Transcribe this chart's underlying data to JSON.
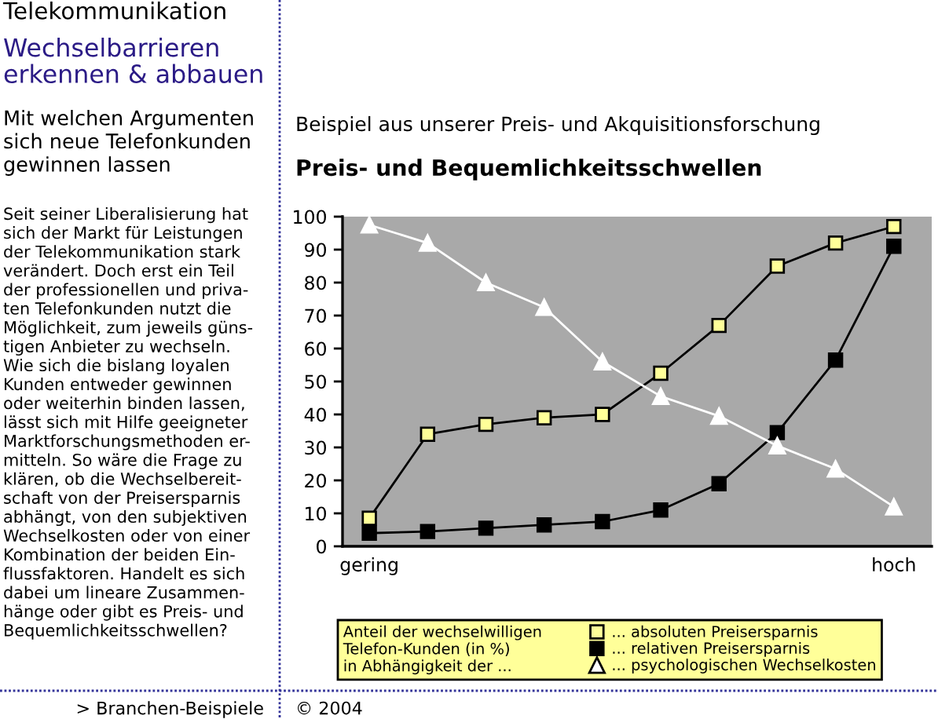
{
  "chart_data": {
    "type": "line",
    "title": "Preis- und Bequemlichkeitsschwellen",
    "subtitle": "Beispiel aus unserer Preis- und Akquisitionsforschung",
    "categories": [
      "gering",
      null,
      null,
      null,
      null,
      null,
      null,
      null,
      null,
      "hoch"
    ],
    "ylim": [
      0,
      100
    ],
    "yticks": [
      0,
      10,
      20,
      30,
      40,
      50,
      60,
      70,
      80,
      90,
      100
    ],
    "legend": "bottom",
    "legend_title": "Anteil der wechselwilligen\nTelefon-Kunden (in %)\nin Abhängigkeit der ...",
    "line_style": "solid",
    "series": [
      {
        "name": "... absoluten Preisersparnis",
        "color": "#ffff99",
        "marker": "square",
        "values": [
          8.5,
          34,
          37,
          39,
          40,
          52.5,
          67,
          85,
          92,
          97
        ]
      },
      {
        "name": "... relativen Preisersparnis",
        "color": "#000000",
        "marker": "square",
        "values": [
          4,
          4.5,
          5.5,
          6.5,
          7.5,
          11,
          19,
          34.5,
          56.5,
          91
        ]
      },
      {
        "name": "... psychologischen Wechselkosten",
        "color": "#ffffff",
        "marker": "triangle",
        "values": [
          97.5,
          92,
          80,
          72.5,
          56,
          45.5,
          39.5,
          30.5,
          23.5,
          12
        ]
      }
    ],
    "annotations": [
      "Telekommunikation",
      "Wechselbarrieren\nerkennen & abbauen",
      "Mit welchen Argumenten\nsich neue Telefonkunden\ngewinnen lassen",
      "Seit seiner Liberalisierung hat\nsich der Markt für Leistungen\nder Telekommunikation stark\nverändert. Doch erst ein Teil\nder professionellen und priva-\nten Telefonkunden nutzt die\nMöglichkeit, zum jeweils güns-\ntigen Anbieter zu wechseln.\nWie sich die bislang loyalen\nKunden entweder gewinnen\noder weiterhin binden lassen,\nlässt sich mit Hilfe geeigneter\nMarktforschungsmethoden er-\nmitteln. So wäre die Frage zu\nklären, ob die Wechselbereit-\nschaft von der Preisersparnis\nabhängt, von den subjektiven\nWechselkosten oder von einer\nKombination der beiden Ein-\nflussfaktoren. Handelt es sich\ndabei um lineare Zusammen-\nhänge oder gibt es Preis- und\nBequemlichkeitsschwellen?",
      "> Branchen-Beispiele",
      "© 2004"
    ]
  }
}
